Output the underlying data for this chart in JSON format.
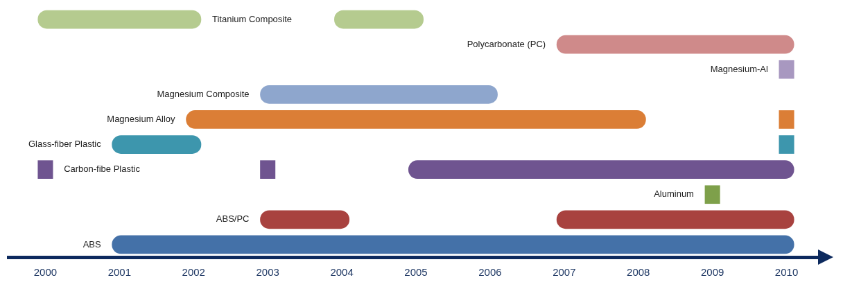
{
  "chart_data": {
    "type": "bar",
    "orientation": "horizontal",
    "categories": [
      "Titanium Composite",
      "Polycarbonate (PC)",
      "Magnesium-Al",
      "Magnesium Composite",
      "Magnesium Alloy",
      "Glass-fiber Plastic",
      "Carbon-fibe Plastic",
      "Aluminum",
      "ABS/PC",
      "ABS"
    ],
    "series": [
      {
        "base": [
          1999.9,
          2006.9,
          2009.9,
          2002.9,
          2001.9,
          2000.9,
          1999.9,
          2008.9,
          2002.9,
          2000.9
        ],
        "values": [
          2.2,
          3.2,
          0.2,
          3.2,
          6.2,
          1.2,
          0.2,
          0.2,
          1.2,
          9.2
        ],
        "colors": [
          "#b5cb8f",
          "#cf8a8a",
          "#a898c0",
          "#8ea6cd",
          "#db7e36",
          "#3d96ad",
          "#6f5490",
          "#7ea04a",
          "#a8423f",
          "#4471a8"
        ]
      },
      {
        "base": [
          2003.9,
          null,
          null,
          null,
          2009.9,
          2009.9,
          2002.9,
          null,
          2006.9,
          null
        ],
        "values": [
          1.2,
          null,
          null,
          null,
          0.2,
          0.2,
          0.2,
          null,
          3.2,
          null
        ],
        "colors": [
          "#b5cb8f",
          null,
          null,
          null,
          "#db7e36",
          "#3d96ad",
          "#6f5490",
          null,
          "#a8423f",
          null
        ]
      },
      {
        "base": [
          null,
          null,
          null,
          null,
          null,
          null,
          2004.9,
          null,
          null,
          null
        ],
        "values": [
          null,
          null,
          null,
          null,
          null,
          null,
          5.2,
          null,
          null,
          null
        ],
        "colors": [
          null,
          null,
          null,
          null,
          null,
          null,
          "#6f5490",
          null,
          null,
          null
        ]
      }
    ],
    "xlim": [
      1999.5,
      2010.5
    ],
    "xticks": [
      2000,
      2001,
      2002,
      2003,
      2004,
      2005,
      2006,
      2007,
      2008,
      2009,
      2010
    ],
    "grid": false,
    "legend": false
  }
}
